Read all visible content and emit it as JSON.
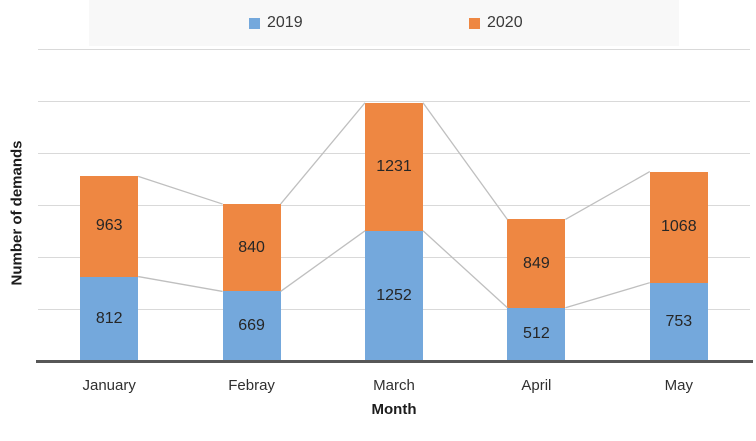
{
  "chart_data": {
    "type": "bar",
    "stacked": true,
    "title": "",
    "xlabel": "Month",
    "ylabel": "Number of demands",
    "categories": [
      "January",
      "Febray",
      "March",
      "April",
      "May"
    ],
    "series": [
      {
        "name": "2019",
        "color": "#74A8DC",
        "values": [
          812,
          669,
          1252,
          512,
          753
        ]
      },
      {
        "name": "2020",
        "color": "#EE8742",
        "values": [
          963,
          840,
          1231,
          849,
          1068
        ]
      }
    ],
    "totals": [
      1775,
      1509,
      2483,
      1361,
      1821
    ],
    "ylim": [
      0,
      3000
    ],
    "grid_step": 500,
    "grid": true,
    "y_tick_labels_visible": false,
    "legend_position": "top",
    "series_connector_lines": true,
    "data_labels": "inside-center"
  },
  "legend": {
    "items": [
      {
        "label": "2019",
        "color": "#74A8DC"
      },
      {
        "label": "2020",
        "color": "#EE8742"
      }
    ]
  },
  "colors": {
    "bar_2019": "#74A8DC",
    "bar_2020": "#EE8742",
    "gridline": "#D9D9D9",
    "connector_line": "#BFBFBF",
    "axis_line": "#575757",
    "legend_background": "#F8F8F8",
    "label_text": "#262626"
  }
}
